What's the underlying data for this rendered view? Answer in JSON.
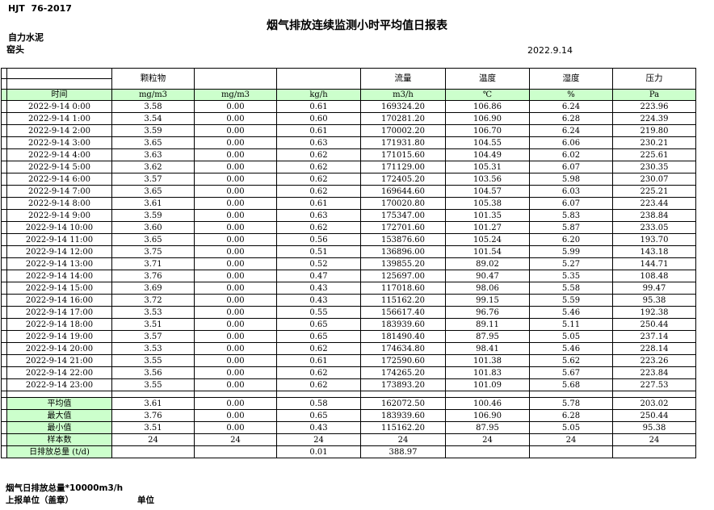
{
  "header": {
    "standard": "HJT  76-2017",
    "title": "烟气排放连续监测小时平均值日报表",
    "company": "自力水泥",
    "station": "窑头",
    "date": "2022.9.14"
  },
  "colors": {
    "highlight_green": "#ccffcc",
    "border": "#000000"
  },
  "table": {
    "group_headers": [
      "",
      "颗粒物",
      "",
      "",
      "流量",
      "温度",
      "湿度",
      "压力"
    ],
    "unit_row": [
      "时间",
      "mg/m3",
      "mg/m3",
      "kg/h",
      "m3/h",
      "℃",
      "%",
      "Pa"
    ],
    "rows": [
      [
        "2022-9-14 0:00",
        "3.58",
        "0.00",
        "0.61",
        "169324.20",
        "106.86",
        "6.24",
        "223.96"
      ],
      [
        "2022-9-14 1:00",
        "3.54",
        "0.00",
        "0.60",
        "170281.20",
        "106.90",
        "6.28",
        "224.39"
      ],
      [
        "2022-9-14 2:00",
        "3.59",
        "0.00",
        "0.61",
        "170002.20",
        "106.70",
        "6.24",
        "219.80"
      ],
      [
        "2022-9-14 3:00",
        "3.65",
        "0.00",
        "0.63",
        "171931.80",
        "104.55",
        "6.06",
        "230.21"
      ],
      [
        "2022-9-14 4:00",
        "3.63",
        "0.00",
        "0.62",
        "171015.60",
        "104.49",
        "6.02",
        "225.61"
      ],
      [
        "2022-9-14 5:00",
        "3.62",
        "0.00",
        "0.62",
        "171129.00",
        "105.31",
        "6.07",
        "230.35"
      ],
      [
        "2022-9-14 6:00",
        "3.57",
        "0.00",
        "0.62",
        "172405.20",
        "103.56",
        "5.98",
        "230.07"
      ],
      [
        "2022-9-14 7:00",
        "3.65",
        "0.00",
        "0.62",
        "169644.60",
        "104.57",
        "6.03",
        "225.21"
      ],
      [
        "2022-9-14 8:00",
        "3.61",
        "0.00",
        "0.61",
        "170020.80",
        "105.38",
        "6.07",
        "223.44"
      ],
      [
        "2022-9-14 9:00",
        "3.59",
        "0.00",
        "0.63",
        "175347.00",
        "101.35",
        "5.83",
        "238.84"
      ],
      [
        "2022-9-14 10:00",
        "3.60",
        "0.00",
        "0.62",
        "172701.60",
        "101.27",
        "5.87",
        "233.05"
      ],
      [
        "2022-9-14 11:00",
        "3.65",
        "0.00",
        "0.56",
        "153876.60",
        "105.24",
        "6.20",
        "193.70"
      ],
      [
        "2022-9-14 12:00",
        "3.75",
        "0.00",
        "0.51",
        "136896.00",
        "101.54",
        "5.99",
        "143.18"
      ],
      [
        "2022-9-14 13:00",
        "3.71",
        "0.00",
        "0.52",
        "139855.20",
        "89.02",
        "5.27",
        "144.71"
      ],
      [
        "2022-9-14 14:00",
        "3.76",
        "0.00",
        "0.47",
        "125697.00",
        "90.47",
        "5.35",
        "108.48"
      ],
      [
        "2022-9-14 15:00",
        "3.69",
        "0.00",
        "0.43",
        "117018.60",
        "98.06",
        "5.58",
        "99.47"
      ],
      [
        "2022-9-14 16:00",
        "3.72",
        "0.00",
        "0.43",
        "115162.20",
        "99.15",
        "5.59",
        "95.38"
      ],
      [
        "2022-9-14 17:00",
        "3.53",
        "0.00",
        "0.55",
        "156617.40",
        "96.76",
        "5.46",
        "192.38"
      ],
      [
        "2022-9-14 18:00",
        "3.51",
        "0.00",
        "0.65",
        "183939.60",
        "89.11",
        "5.11",
        "250.44"
      ],
      [
        "2022-9-14 19:00",
        "3.57",
        "0.00",
        "0.65",
        "181490.40",
        "87.95",
        "5.05",
        "237.14"
      ],
      [
        "2022-9-14 20:00",
        "3.53",
        "0.00",
        "0.62",
        "174634.80",
        "98.41",
        "5.46",
        "228.14"
      ],
      [
        "2022-9-14 21:00",
        "3.55",
        "0.00",
        "0.61",
        "172590.60",
        "101.38",
        "5.62",
        "223.26"
      ],
      [
        "2022-9-14 22:00",
        "3.56",
        "0.00",
        "0.62",
        "174265.20",
        "101.83",
        "5.67",
        "223.84"
      ],
      [
        "2022-9-14 23:00",
        "3.55",
        "0.00",
        "0.62",
        "173893.20",
        "101.09",
        "5.68",
        "227.53"
      ]
    ],
    "summary": [
      {
        "label": "平均值",
        "values": [
          "3.61",
          "0.00",
          "0.58",
          "162072.50",
          "100.46",
          "5.78",
          "203.02"
        ]
      },
      {
        "label": "最大值",
        "values": [
          "3.76",
          "0.00",
          "0.65",
          "183939.60",
          "106.90",
          "6.28",
          "250.44"
        ]
      },
      {
        "label": "最小值",
        "values": [
          "3.51",
          "0.00",
          "0.43",
          "115162.20",
          "87.95",
          "5.05",
          "95.38"
        ]
      },
      {
        "label": "样本数",
        "values": [
          "24",
          "24",
          "24",
          "24",
          "24",
          "24",
          "24"
        ]
      },
      {
        "label": "日排放总量 (t/d)",
        "values": [
          "",
          "",
          "0.01",
          "388.97",
          "",
          "",
          ""
        ]
      }
    ]
  },
  "footer": {
    "note": "烟气日排放总量*10000m3/h",
    "report_unit_label": "上报单位（盖章）",
    "unit_label": "单位"
  }
}
